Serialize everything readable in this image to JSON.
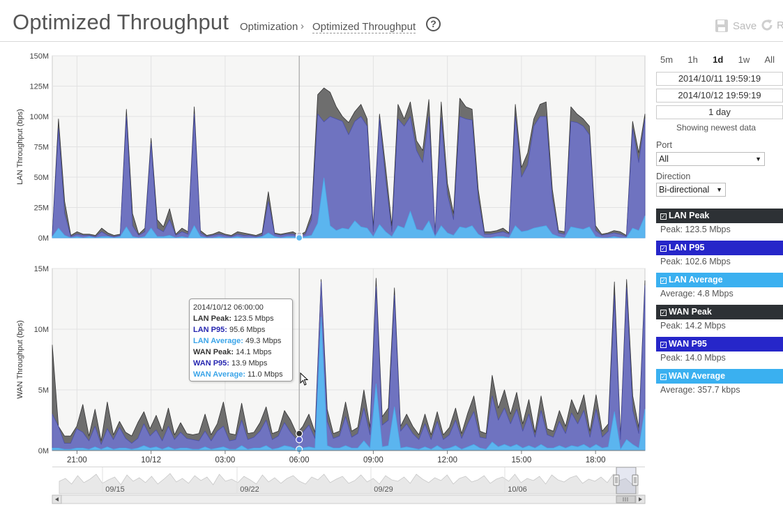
{
  "header": {
    "title": "Optimized Throughput",
    "breadcrumb_parent": "Optimization",
    "breadcrumb_separator": "›",
    "breadcrumb_current": "Optimized Throughput",
    "help_label": "?",
    "save_label": "Save",
    "refresh_label": "R"
  },
  "controls": {
    "ranges": [
      "5m",
      "1h",
      "1d",
      "1w",
      "All"
    ],
    "active_range": "1d",
    "start_time": "2014/10/11 19:59:19",
    "end_time": "2014/10/12 19:59:19",
    "duration": "1 day",
    "status": "Showing newest data",
    "port_label": "Port",
    "port_value": "All",
    "direction_label": "Direction",
    "direction_value": "Bi-directional"
  },
  "legend": [
    {
      "name": "LAN Peak",
      "stat_label": "Peak:",
      "stat_value": "123.5 Mbps",
      "color": "#2d3135"
    },
    {
      "name": "LAN P95",
      "stat_label": "Peak:",
      "stat_value": "102.6 Mbps",
      "color": "#2626c9"
    },
    {
      "name": "LAN Average",
      "stat_label": "Average:",
      "stat_value": "4.8 Mbps",
      "color": "#3ab0f0"
    },
    {
      "name": "WAN Peak",
      "stat_label": "Peak:",
      "stat_value": "14.2 Mbps",
      "color": "#2d3135"
    },
    {
      "name": "WAN P95",
      "stat_label": "Peak:",
      "stat_value": "14.0 Mbps",
      "color": "#2626c9"
    },
    {
      "name": "WAN Average",
      "stat_label": "Average:",
      "stat_value": "357.7 kbps",
      "color": "#3ab0f0"
    }
  ],
  "tooltip": {
    "timestamp": "2014/10/12 06:00:00",
    "rows": [
      {
        "label": "LAN Peak:",
        "value": "123.5 Mbps",
        "color": "#333333"
      },
      {
        "label": "LAN P95:",
        "value": "95.6 Mbps",
        "color": "#2626b0"
      },
      {
        "label": "LAN Average:",
        "value": "49.3 Mbps",
        "color": "#3aa4e8"
      },
      {
        "label": "WAN Peak:",
        "value": "14.1 Mbps",
        "color": "#333333"
      },
      {
        "label": "WAN P95:",
        "value": "13.9 Mbps",
        "color": "#2626b0"
      },
      {
        "label": "WAN Average:",
        "value": "11.0 Mbps",
        "color": "#3aa4e8"
      }
    ]
  },
  "colors": {
    "peak_fill": "#6e6e6e",
    "p95_fill": "#6f73c0",
    "avg_fill": "#5bb5ef",
    "plot_bg": "#f6f6f5",
    "grid": "#e2e2e2"
  },
  "chart_data": [
    {
      "type": "area",
      "title": "",
      "ylabel": "LAN Throughput (bps)",
      "ylim": [
        0,
        150
      ],
      "yticks": [
        0,
        25,
        50,
        75,
        100,
        125,
        150
      ],
      "ytick_labels": [
        "0M",
        "25M",
        "50M",
        "75M",
        "100M",
        "125M",
        "150M"
      ],
      "x_start_hours": 0,
      "x_end_hours": 24,
      "x_ticks_hours": [
        1,
        4,
        7,
        10,
        13,
        16,
        19,
        22
      ],
      "x_tick_labels": [
        "21:00",
        "10/12",
        "03:00",
        "06:00",
        "09:00",
        "12:00",
        "15:00",
        "18:00"
      ],
      "series": [
        {
          "name": "LAN Peak",
          "values": [
            3,
            98,
            30,
            2,
            5,
            3,
            3,
            2,
            8,
            4,
            2,
            3,
            106,
            20,
            3,
            8,
            82,
            15,
            9,
            24,
            3,
            8,
            5,
            108,
            6,
            2,
            3,
            5,
            3,
            2,
            5,
            4,
            3,
            2,
            4,
            38,
            4,
            3,
            4,
            5,
            2,
            5,
            20,
            118,
            123.5,
            120,
            108,
            100,
            95,
            104,
            110,
            98,
            9,
            102,
            58,
            10,
            110,
            98,
            112,
            80,
            72,
            114,
            4,
            112,
            45,
            20,
            115,
            108,
            106,
            40,
            5,
            5,
            6,
            8,
            4,
            110,
            58,
            70,
            98,
            110,
            112,
            40,
            6,
            5,
            108,
            102,
            98,
            92,
            10,
            3,
            4,
            6,
            5,
            2,
            96,
            70,
            102
          ]
        },
        {
          "name": "LAN P95",
          "values": [
            2,
            90,
            20,
            1,
            3,
            2,
            2,
            1,
            5,
            2,
            1,
            2,
            100,
            10,
            2,
            5,
            78,
            8,
            5,
            15,
            2,
            5,
            3,
            102,
            4,
            1,
            2,
            3,
            2,
            1,
            3,
            2,
            2,
            1,
            2,
            30,
            3,
            2,
            3,
            3,
            1,
            3,
            15,
            102,
            95.6,
            100,
            98,
            96,
            85,
            96,
            100,
            92,
            5,
            98,
            48,
            5,
            98,
            92,
            100,
            72,
            62,
            100,
            3,
            99,
            36,
            15,
            100,
            98,
            97,
            32,
            3,
            3,
            4,
            5,
            3,
            100,
            50,
            60,
            92,
            100,
            100,
            32,
            4,
            3,
            96,
            95,
            92,
            85,
            6,
            2,
            3,
            4,
            3,
            1,
            90,
            62,
            98
          ]
        },
        {
          "name": "LAN Average",
          "values": [
            1,
            8,
            2,
            0,
            1,
            0,
            1,
            0,
            1,
            1,
            0,
            1,
            9,
            1,
            0,
            1,
            8,
            1,
            1,
            2,
            0,
            1,
            0,
            10,
            1,
            0,
            0,
            1,
            0,
            0,
            1,
            0,
            0,
            0,
            1,
            4,
            1,
            0,
            1,
            1,
            0,
            1,
            2,
            12,
            49.3,
            10,
            6,
            8,
            7,
            14,
            9,
            8,
            1,
            11,
            5,
            1,
            10,
            8,
            22,
            7,
            6,
            14,
            1,
            10,
            4,
            2,
            9,
            8,
            10,
            3,
            0,
            0,
            1,
            1,
            0,
            10,
            5,
            6,
            8,
            9,
            10,
            3,
            1,
            0,
            9,
            8,
            7,
            9,
            1,
            0,
            0,
            1,
            0,
            0,
            8,
            6,
            18
          ]
        }
      ]
    },
    {
      "type": "area",
      "title": "",
      "ylabel": "WAN Throughput (bps)",
      "ylim": [
        0,
        15
      ],
      "yticks": [
        0,
        5,
        10,
        15
      ],
      "ytick_labels": [
        "0M",
        "5M",
        "10M",
        "15M"
      ],
      "x_start_hours": 0,
      "x_end_hours": 24,
      "x_ticks_hours": [
        1,
        4,
        7,
        10,
        13,
        16,
        19,
        22
      ],
      "x_tick_labels": [
        "21:00",
        "10/12",
        "03:00",
        "06:00",
        "09:00",
        "12:00",
        "15:00",
        "18:00"
      ],
      "series": [
        {
          "name": "WAN Peak",
          "values": [
            8.7,
            2,
            1.2,
            1.2,
            2,
            3.8,
            1.2,
            3.4,
            0.8,
            4,
            1.3,
            2.4,
            1.5,
            1.2,
            2.3,
            3.2,
            1.8,
            2.9,
            1.6,
            3.5,
            1.3,
            2.3,
            1.4,
            1.3,
            1.4,
            3,
            1.3,
            2.2,
            4,
            1.4,
            1.3,
            3.9,
            1.4,
            1.5,
            2.3,
            3.6,
            1.4,
            1.6,
            3.3,
            2.5,
            1.4,
            2,
            3,
            1.5,
            14.1,
            3.4,
            1.4,
            1.6,
            4,
            1.6,
            1.9,
            5,
            1.9,
            14.2,
            2.8,
            3.5,
            13.4,
            2,
            3,
            2,
            1.3,
            3,
            1.3,
            3.2,
            1.3,
            1.9,
            3.5,
            1.4,
            3.1,
            4.5,
            1.6,
            1.4,
            6.2,
            3.5,
            5,
            3,
            4.8,
            2.2,
            4.2,
            1.5,
            4.5,
            1.8,
            1.6,
            3.3,
            2,
            4.2,
            3,
            4.6,
            1.6,
            4.6,
            1.6,
            2.2,
            13.9,
            1.2,
            14.1,
            4.5,
            1.9,
            14
          ]
        },
        {
          "name": "WAN P95",
          "values": [
            3,
            2,
            0.6,
            0.6,
            1.8,
            1.5,
            0.8,
            2,
            0.5,
            1.8,
            0.9,
            1.9,
            1,
            0.6,
            1,
            2.2,
            1.2,
            1.7,
            0.8,
            2,
            0.9,
            1.5,
            1,
            0.9,
            0.8,
            1.6,
            0.8,
            1.6,
            2,
            0.8,
            0.9,
            2.5,
            0.9,
            1.1,
            1.6,
            2.5,
            0.9,
            1.2,
            2.3,
            1.5,
            0.9,
            1.5,
            2.1,
            1,
            13.9,
            2.4,
            1,
            1.2,
            2.8,
            1.1,
            1.4,
            3.5,
            1.3,
            13.5,
            2.1,
            2.5,
            12.8,
            1.6,
            2.2,
            1.4,
            0.9,
            2.2,
            0.9,
            2.4,
            0.9,
            1.3,
            2.5,
            1,
            2.2,
            3.2,
            1.1,
            1,
            4.5,
            2.5,
            3.5,
            2.2,
            3.4,
            1.6,
            3,
            1.1,
            3.3,
            1.3,
            1.1,
            2.4,
            1.4,
            3.1,
            2.2,
            3.3,
            1.1,
            3.4,
            1.1,
            1.6,
            12.8,
            0.9,
            13.4,
            3.3,
            1.4,
            13.6
          ]
        },
        {
          "name": "WAN Average",
          "values": [
            0.2,
            0.2,
            0.1,
            0.1,
            0.2,
            0.2,
            0.1,
            0.3,
            0.1,
            0.3,
            0.1,
            0.2,
            0.2,
            0.1,
            0.2,
            0.4,
            0.2,
            0.3,
            0.1,
            0.3,
            0.1,
            0.2,
            0.2,
            0.1,
            0.1,
            0.3,
            0.1,
            0.2,
            0.3,
            0.1,
            0.1,
            0.4,
            0.1,
            0.2,
            0.2,
            0.4,
            0.1,
            0.2,
            0.4,
            0.3,
            0.1,
            0.2,
            0.3,
            0.2,
            11.0,
            0.4,
            0.2,
            0.2,
            0.4,
            0.2,
            0.2,
            0.8,
            0.2,
            5.5,
            0.3,
            0.4,
            3.6,
            0.2,
            0.3,
            0.2,
            0.1,
            0.3,
            0.1,
            0.4,
            0.1,
            0.2,
            0.4,
            0.1,
            0.3,
            0.5,
            0.2,
            0.1,
            0.7,
            0.3,
            0.5,
            0.3,
            0.5,
            0.2,
            0.4,
            0.2,
            0.5,
            0.2,
            0.2,
            0.4,
            0.2,
            0.4,
            0.3,
            0.5,
            0.2,
            0.5,
            0.2,
            0.3,
            3.2,
            0.1,
            0.9,
            0.5,
            0.2,
            3.4
          ]
        }
      ],
      "highlight_time_hours": 10
    },
    {
      "type": "area",
      "title": "",
      "x_tick_labels": [
        "09/15",
        "09/22",
        "09/29",
        "10/06"
      ],
      "series": [
        {
          "name": "Overview",
          "values": [
            12,
            16,
            8,
            20,
            10,
            15,
            22,
            9,
            14,
            18,
            7,
            21,
            12,
            17,
            10,
            19,
            8,
            15,
            23,
            11,
            16,
            9,
            20,
            13,
            18,
            7,
            22,
            12,
            15,
            10,
            19,
            14,
            8,
            21,
            11,
            17,
            9,
            16,
            20,
            12,
            8,
            18,
            14,
            22,
            10,
            15,
            19,
            9,
            13,
            21,
            11,
            16,
            8,
            20,
            14,
            12,
            18,
            9,
            22,
            15,
            10,
            17,
            13,
            21,
            8,
            16,
            19,
            11,
            14,
            20,
            9,
            15,
            18,
            12,
            22,
            10,
            16,
            13,
            19,
            8,
            21,
            14,
            11,
            17,
            20,
            9,
            15,
            12,
            18,
            10,
            22,
            13,
            16,
            8,
            19
          ]
        }
      ]
    }
  ]
}
